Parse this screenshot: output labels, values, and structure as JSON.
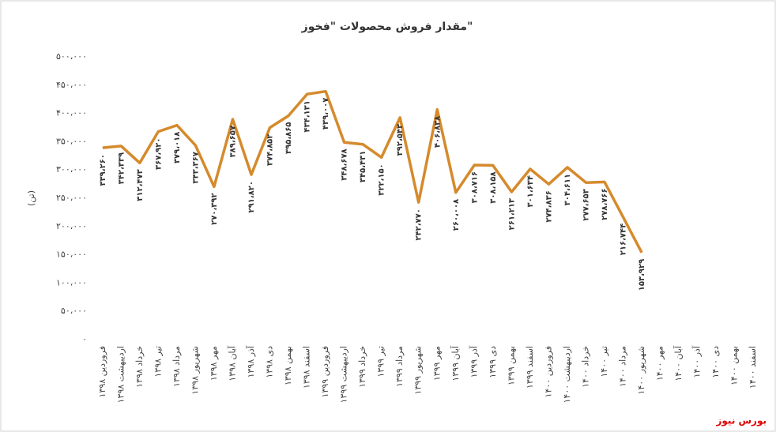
{
  "chart_data": {
    "type": "line",
    "title": "مقدار فروش محصولات \"فخوز\"",
    "y_label": "(تن)",
    "source": "بورس نیوز",
    "color": "#d58a2c",
    "grid": false,
    "categories": [
      "فروردین ۱۳۹۸",
      "اردیبهشت ۱۳۹۸",
      "خرداد ۱۳۹۸",
      "تیر ۱۳۹۸",
      "مرداد ۱۳۹۸",
      "شهریور ۱۳۹۸",
      "مهر ۱۳۹۸",
      "آبان ۱۳۹۸",
      "آذر ۱۳۹۸",
      "دی ۱۳۹۸",
      "بهمن ۱۳۹۸",
      "اسفند ۱۳۹۸",
      "فروردین ۱۳۹۹",
      "اردیبهشت ۱۳۹۹",
      "خرداد ۱۳۹۹",
      "تیر ۱۳۹۹",
      "مرداد ۱۳۹۹",
      "شهریور ۱۳۹۹",
      "مهر ۱۳۹۹",
      "آبان ۱۳۹۹",
      "آذر ۱۳۹۹",
      "دی ۱۳۹۹",
      "بهمن ۱۳۹۹",
      "اسفند ۱۳۹۹",
      "فروردین ۱۴۰۰",
      "اردیبهشت ۱۴۰۰",
      "خرداد ۱۴۰۰",
      "تیر ۱۴۰۰",
      "مرداد ۱۴۰۰",
      "شهریور ۱۴۰۰",
      "مهر ۱۴۰۰",
      "آبان ۱۴۰۰",
      "آذر ۱۴۰۰",
      "دی ۱۴۰۰",
      "بهمن ۱۴۰۰",
      "اسفند ۱۴۰۰"
    ],
    "values": [
      339260,
      342339,
      312473,
      367920,
      379018,
      343367,
      270392,
      389657,
      291820,
      374852,
      395865,
      434131,
      439007,
      348678,
      345431,
      322150,
      392543,
      242770,
      406838,
      260008,
      308716,
      308158,
      261213,
      301634,
      274836,
      304611,
      277653,
      278766,
      216744,
      153929,
      null,
      null,
      null,
      null,
      null,
      null
    ],
    "value_labels": [
      "۳۳۹،۲۶۰",
      "۳۴۲،۳۳۹",
      "۳۱۲،۴۷۳",
      "۳۶۷،۹۲۰",
      "۳۷۹،۰۱۸",
      "۳۴۳،۳۶۷",
      "۲۷۰،۳۹۲",
      "۳۸۹،۶۵۷",
      "۲۹۱،۸۲۰",
      "۳۷۴،۸۵۲",
      "۳۹۵،۸۶۵",
      "۴۳۴،۱۳۱",
      "۴۳۹،۰۰۷",
      "۳۴۸،۶۷۸",
      "۳۴۵،۴۳۱",
      "۳۲۲،۱۵۰",
      "۳۹۲،۵۴۳",
      "۲۴۲،۷۷۰",
      "۴۰۶،۸۳۸",
      "۲۶۰،۰۰۸",
      "۳۰۸،۷۱۶",
      "۳۰۸،۱۵۸",
      "۲۶۱،۲۱۳",
      "۳۰۱،۶۳۴",
      "۲۷۴،۸۳۶",
      "۳۰۴،۶۱۱",
      "۲۷۷،۶۵۳",
      "۲۷۸،۷۶۶",
      "۲۱۶،۷۴۴",
      "۱۵۳،۹۲۹",
      null,
      null,
      null,
      null,
      null,
      null
    ],
    "ylim": [
      0,
      500000
    ],
    "yticks": [
      {
        "value": 0,
        "label": "۰"
      },
      {
        "value": 50000,
        "label": "۵۰،۰۰۰"
      },
      {
        "value": 100000,
        "label": "۱۰۰،۰۰۰"
      },
      {
        "value": 150000,
        "label": "۱۵۰،۰۰۰"
      },
      {
        "value": 200000,
        "label": "۲۰۰،۰۰۰"
      },
      {
        "value": 250000,
        "label": "۲۵۰،۰۰۰"
      },
      {
        "value": 300000,
        "label": "۳۰۰،۰۰۰"
      },
      {
        "value": 350000,
        "label": "۳۵۰،۰۰۰"
      },
      {
        "value": 400000,
        "label": "۴۰۰،۰۰۰"
      },
      {
        "value": 450000,
        "label": "۴۵۰،۰۰۰"
      },
      {
        "value": 500000,
        "label": "۵۰۰،۰۰۰"
      }
    ]
  }
}
